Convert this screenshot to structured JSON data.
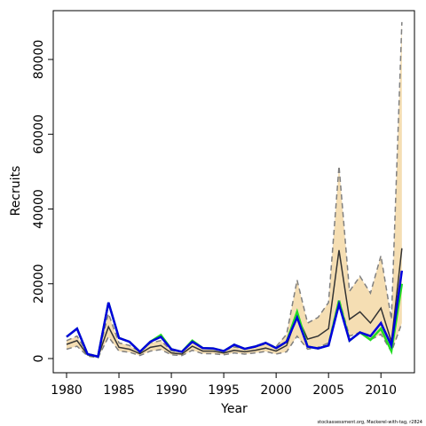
{
  "chart_data": {
    "type": "line",
    "x_label": "Year",
    "y_label": "Recruits",
    "caption": "stockassessment.org, Mackerel-with-tag, r2824",
    "x": [
      1980,
      1981,
      1982,
      1983,
      1984,
      1985,
      1986,
      1987,
      1988,
      1989,
      1990,
      1991,
      1992,
      1993,
      1994,
      1995,
      1996,
      1997,
      1998,
      1999,
      2000,
      2001,
      2002,
      2003,
      2004,
      2005,
      2006,
      2007,
      2008,
      2009,
      2010,
      2011,
      2012
    ],
    "band": {
      "color": "#f5deb3",
      "edge_color": "#808080",
      "upper": [
        4800,
        6000,
        1400,
        600,
        12000,
        4200,
        3500,
        1800,
        4200,
        4800,
        2100,
        1700,
        4500,
        2800,
        2800,
        2100,
        3100,
        2600,
        3100,
        3900,
        3200,
        6500,
        21000,
        9500,
        11000,
        15000,
        51500,
        18000,
        22000,
        17500,
        27500,
        10500,
        90000
      ],
      "lower": [
        2500,
        3300,
        700,
        200,
        5800,
        2000,
        1700,
        800,
        2000,
        2400,
        1000,
        800,
        2200,
        1300,
        1300,
        1000,
        1500,
        1200,
        1500,
        1900,
        1200,
        1800,
        6000,
        2500,
        3000,
        4200,
        16000,
        6000,
        7000,
        5000,
        6500,
        1800,
        9500
      ]
    },
    "series": [
      {
        "color": "#333333",
        "width": 1.5,
        "values": [
          3800,
          4800,
          1000,
          400,
          8500,
          3000,
          2500,
          1300,
          3000,
          3500,
          1500,
          1200,
          3300,
          2000,
          2000,
          1500,
          2200,
          1800,
          2200,
          2800,
          2000,
          3500,
          11500,
          5200,
          6000,
          8000,
          29000,
          10500,
          12500,
          9500,
          13500,
          4500,
          29500
        ]
      },
      {
        "color": "#22dd22",
        "width": 2.5,
        "values": [
          5800,
          8000,
          1200,
          500,
          15000,
          5500,
          4500,
          1800,
          4500,
          6300,
          2500,
          1800,
          4800,
          2800,
          2700,
          2000,
          3700,
          2600,
          3200,
          4200,
          2800,
          4500,
          12500,
          3200,
          2700,
          3500,
          15500,
          4800,
          7000,
          5000,
          8000,
          2000,
          20000
        ]
      },
      {
        "color": "#0000dd",
        "width": 2.5,
        "values": [
          5800,
          8000,
          1200,
          500,
          15000,
          5500,
          4500,
          1800,
          4500,
          5800,
          2500,
          1800,
          4500,
          2800,
          2700,
          2000,
          3700,
          2600,
          3200,
          4200,
          2800,
          4500,
          11000,
          3200,
          2700,
          3500,
          14500,
          4800,
          7000,
          6000,
          9500,
          3500,
          23500
        ]
      }
    ],
    "xlim": [
      1978.73,
      2013.2
    ],
    "ylim": [
      -3798,
      93057
    ],
    "xticks": [
      1980,
      1985,
      1990,
      1995,
      2000,
      2005,
      2010
    ],
    "yticks": [
      0,
      20000,
      40000,
      60000,
      80000
    ]
  }
}
